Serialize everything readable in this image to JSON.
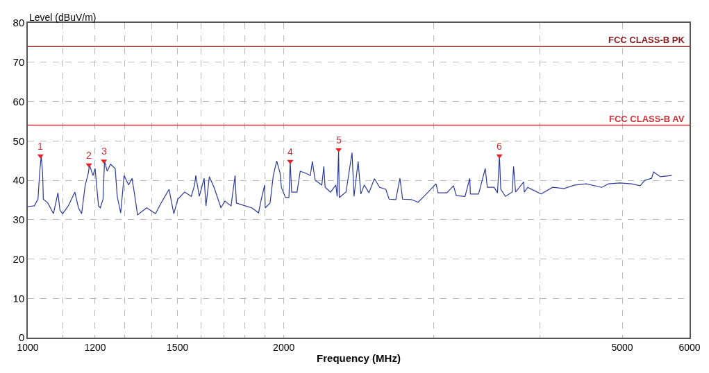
{
  "chart_data": {
    "type": "line",
    "xlabel": "Frequency (MHz)",
    "ylabel": "Level (dBuV/m)",
    "log": "x",
    "grid": true,
    "line_style": "solid",
    "xlim": [
      1000,
      6000
    ],
    "ylim": [
      0,
      80
    ],
    "xticks": [
      1000,
      {
        "value": 1100,
        "label": null
      },
      1200,
      {
        "value": 1300,
        "label": null
      },
      {
        "value": 1400,
        "label": null
      },
      1500,
      {
        "value": 1600,
        "label": null
      },
      {
        "value": 1700,
        "label": null
      },
      {
        "value": 1800,
        "label": null
      },
      {
        "value": 1900,
        "label": null
      },
      2000,
      {
        "value": 3000,
        "label": null
      },
      {
        "value": 4000,
        "label": null
      },
      5000,
      6000
    ],
    "yticks": [
      0,
      10,
      20,
      30,
      40,
      50,
      60,
      70,
      80
    ],
    "series": [
      {
        "marker": "none",
        "color": "#2b3a9a",
        "x": [
          1000,
          1018,
          1028,
          1033,
          1037,
          1041,
          1043,
          1056,
          1072,
          1085,
          1091,
          1099,
          1116,
          1136,
          1147,
          1157,
          1168,
          1178,
          1182,
          1193,
          1200,
          1211,
          1217,
          1226,
          1231,
          1240,
          1251,
          1267,
          1274,
          1286,
          1298,
          1314,
          1326,
          1334,
          1346,
          1363,
          1380,
          1413,
          1439,
          1466,
          1485,
          1501,
          1529,
          1557,
          1571,
          1576,
          1591,
          1612,
          1620,
          1635,
          1656,
          1687,
          1705,
          1734,
          1753,
          1759,
          1801,
          1834,
          1868,
          1882,
          1899,
          1902,
          1927,
          1944,
          1962,
          1980,
          1987,
          2009,
          2028,
          2035,
          2043,
          2073,
          2091,
          2122,
          2149,
          2161,
          2177,
          2217,
          2229,
          2237,
          2270,
          2303,
          2311,
          2320,
          2324,
          2367,
          2406,
          2419,
          2446,
          2464,
          2487,
          2519,
          2556,
          2593,
          2636,
          2660,
          2709,
          2739,
          2759,
          2825,
          2877,
          2930,
          3020,
          3037,
          3110,
          3167,
          3190,
          3267,
          3309,
          3315,
          3389,
          3451,
          3470,
          3534,
          3567,
          3586,
          3599,
          3645,
          3712,
          3726,
          3746,
          3829,
          3836,
          3871,
          4014,
          4141,
          4272,
          4398,
          4536,
          4731,
          4818,
          4970,
          5126,
          5248,
          5316,
          5413,
          5443,
          5543,
          5717
        ],
        "values": [
          33.3,
          33.5,
          35.2,
          42.3,
          46.2,
          41.8,
          35.2,
          34.2,
          31.5,
          36.8,
          32.4,
          31.5,
          33.5,
          37.0,
          33.0,
          31.5,
          38.6,
          41.8,
          43.9,
          41.2,
          43.0,
          33.5,
          33.0,
          35.2,
          44.9,
          42.3,
          44.1,
          43.0,
          35.9,
          31.7,
          41.2,
          38.8,
          40.5,
          37.0,
          31.2,
          32.1,
          33.0,
          31.5,
          34.7,
          37.7,
          31.5,
          35.2,
          37.0,
          35.9,
          38.8,
          41.2,
          35.9,
          40.5,
          33.5,
          40.9,
          38.2,
          33.0,
          34.7,
          33.5,
          41.2,
          34.2,
          33.5,
          33.0,
          31.7,
          35.2,
          38.8,
          33.0,
          34.2,
          41.2,
          44.9,
          41.8,
          38.2,
          35.6,
          35.6,
          44.8,
          37.0,
          37.0,
          42.3,
          41.8,
          41.2,
          44.8,
          40.0,
          38.8,
          43.5,
          38.2,
          37.0,
          38.8,
          35.9,
          47.4,
          35.6,
          37.0,
          47.0,
          35.9,
          44.8,
          36.5,
          38.8,
          36.8,
          40.4,
          38.2,
          37.7,
          35.2,
          35.1,
          40.5,
          35.2,
          35.1,
          34.4,
          36.1,
          39.1,
          36.8,
          36.8,
          38.6,
          36.1,
          35.9,
          40.5,
          36.5,
          36.5,
          43.0,
          38.2,
          38.2,
          36.8,
          46.2,
          37.7,
          35.9,
          37.0,
          43.5,
          37.0,
          39.6,
          37.0,
          38.2,
          36.5,
          38.2,
          37.9,
          38.8,
          39.1,
          38.2,
          39.1,
          39.3,
          39.1,
          38.6,
          40.0,
          40.5,
          42.1,
          40.9,
          41.2
        ]
      },
      {
        "type": "scatter",
        "marker": "triangle",
        "color": "#e8202a",
        "x": [
          1035,
          1180,
          1229,
          2035,
          2320,
          3586
        ],
        "values": [
          46.2,
          43.9,
          44.9,
          44.8,
          47.8,
          46.2
        ]
      }
    ],
    "ref_lines": [
      {
        "axis": "y",
        "value": 74,
        "label": "FCC CLASS-B PK",
        "color": "#8b1a1a"
      },
      {
        "axis": "y",
        "value": 54,
        "label": "FCC CLASS-B AV",
        "color": "#c8323a"
      }
    ],
    "annotations": [
      {
        "text": "1",
        "x": 1035,
        "y": 46.2
      },
      {
        "text": "2",
        "x": 1180,
        "y": 43.9
      },
      {
        "text": "3",
        "x": 1229,
        "y": 44.9
      },
      {
        "text": "4",
        "x": 2035,
        "y": 44.8
      },
      {
        "text": "5",
        "x": 2320,
        "y": 47.8
      },
      {
        "text": "6",
        "x": 3586,
        "y": 46.2
      }
    ]
  }
}
